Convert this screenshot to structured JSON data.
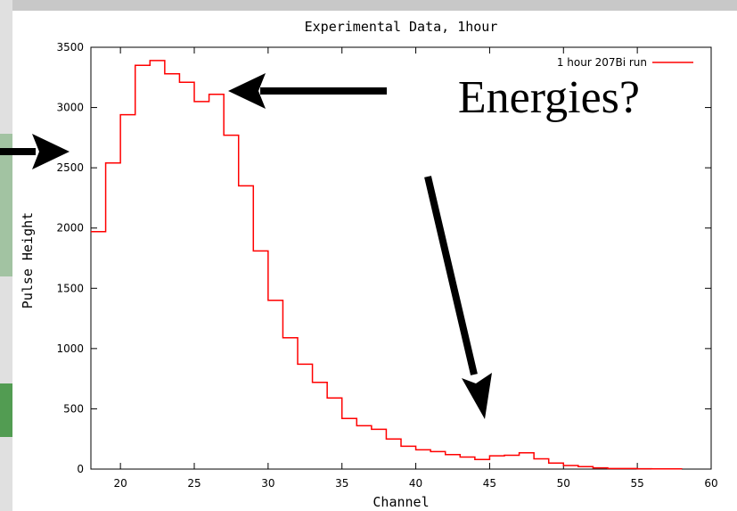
{
  "annotation": {
    "text": "Energies?"
  },
  "chart_data": {
    "type": "line",
    "title": "Experimental Data, 1hour",
    "xlabel": "Channel",
    "ylabel": "Pulse Height",
    "xlim": [
      18,
      60
    ],
    "ylim": [
      0,
      3500
    ],
    "xticks": [
      20,
      25,
      30,
      35,
      40,
      45,
      50,
      55,
      60
    ],
    "yticks": [
      0,
      500,
      1000,
      1500,
      2000,
      2500,
      3000,
      3500
    ],
    "grid": false,
    "legend": "top-right",
    "step": true,
    "series": [
      {
        "name": "1 hour 207Bi run",
        "color": "#ff0000",
        "x": [
          18,
          19,
          20,
          21,
          22,
          23,
          24,
          25,
          26,
          27,
          28,
          29,
          30,
          31,
          32,
          33,
          34,
          35,
          36,
          37,
          38,
          39,
          40,
          41,
          42,
          43,
          44,
          45,
          46,
          47,
          48,
          49,
          50,
          51,
          52,
          53,
          54,
          55,
          56,
          57,
          58
        ],
        "values": [
          1970,
          2540,
          2940,
          3350,
          3390,
          3280,
          3210,
          3050,
          3110,
          2770,
          2350,
          1810,
          1400,
          1090,
          870,
          720,
          590,
          420,
          360,
          330,
          250,
          190,
          160,
          145,
          120,
          100,
          80,
          110,
          115,
          135,
          85,
          50,
          30,
          20,
          10,
          5,
          5,
          3,
          2,
          2,
          0
        ]
      }
    ]
  }
}
